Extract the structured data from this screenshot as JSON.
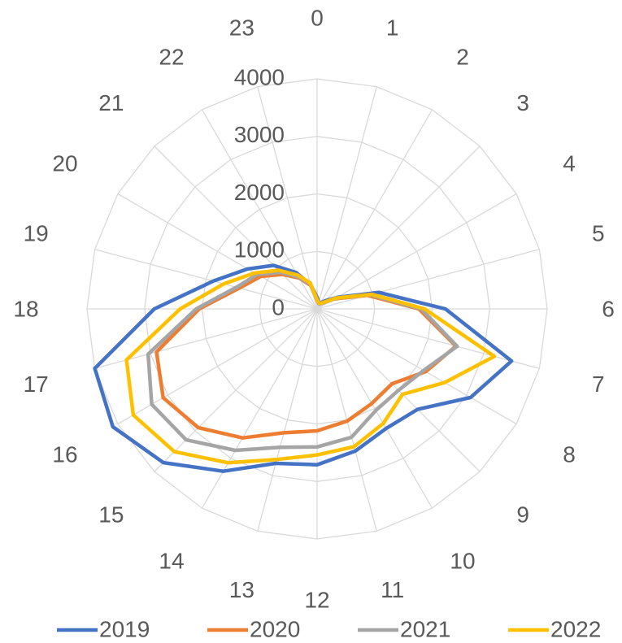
{
  "chart_data": {
    "type": "radar",
    "categories": [
      "0",
      "1",
      "2",
      "3",
      "4",
      "5",
      "6",
      "7",
      "8",
      "9",
      "10",
      "11",
      "12",
      "13",
      "14",
      "15",
      "16",
      "17",
      "18",
      "19",
      "20",
      "21",
      "22",
      "23"
    ],
    "series": [
      {
        "name": "2019",
        "color": "#4472c4",
        "values": [
          200,
          120,
          120,
          200,
          400,
          1110,
          2230,
          3500,
          3080,
          2470,
          2400,
          2560,
          2710,
          2780,
          3260,
          3780,
          4100,
          4000,
          2830,
          1870,
          1390,
          1070,
          730,
          440
        ]
      },
      {
        "name": "2020",
        "color": "#ed7d31",
        "values": [
          150,
          100,
          100,
          150,
          350,
          910,
          1770,
          2500,
          2180,
          1840,
          1900,
          2020,
          2120,
          2230,
          2590,
          2920,
          3090,
          2890,
          2050,
          1400,
          1130,
          850,
          620,
          420
        ]
      },
      {
        "name": "2021",
        "color": "#a5a5a5",
        "values": [
          150,
          100,
          100,
          150,
          370,
          950,
          1810,
          2520,
          2140,
          2000,
          2040,
          2310,
          2400,
          2490,
          2840,
          3220,
          3320,
          3040,
          2100,
          1450,
          1200,
          900,
          640,
          440
        ]
      },
      {
        "name": "2022",
        "color": "#ffc000",
        "values": [
          160,
          110,
          110,
          160,
          380,
          980,
          1870,
          3190,
          2560,
          2100,
          2300,
          2480,
          2540,
          2710,
          3090,
          3510,
          3690,
          3430,
          2380,
          1680,
          1250,
          950,
          680,
          470
        ]
      }
    ],
    "rlim": [
      0,
      4000
    ],
    "rticks": [
      0,
      1000,
      2000,
      3000,
      4000
    ],
    "grid": true,
    "legend": "bottom"
  }
}
